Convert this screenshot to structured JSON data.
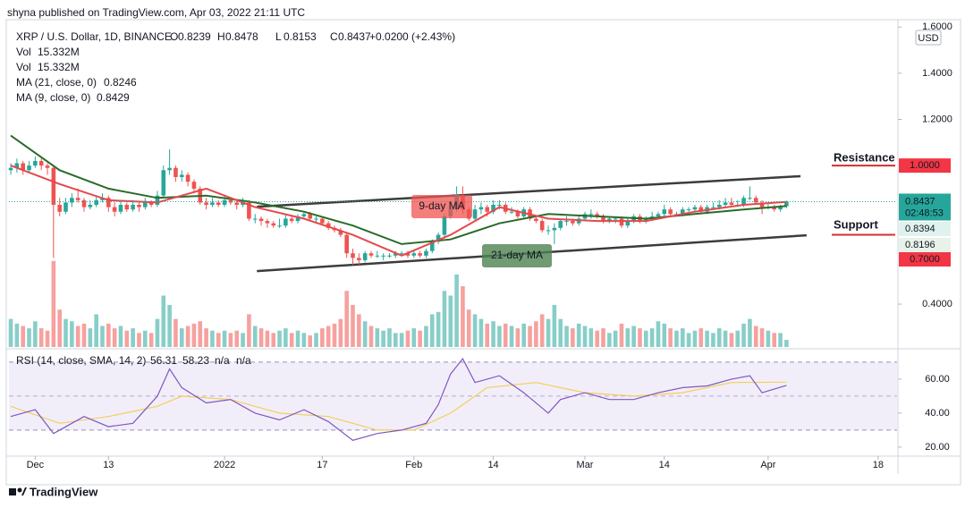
{
  "chart_data": {
    "type": "candlestick",
    "header": "shyna published on TradingView.com, Apr 03, 2022 21:11 UTC",
    "symbol": "XRP / U.S. Dollar, 1D, BINANCE",
    "ohlc_letters": [
      "O",
      "H",
      "L",
      "C"
    ],
    "change": "+0.0200 (+2.43%)",
    "currency": "USD",
    "footer": "TradingView",
    "up_color": "#26a69a",
    "down_color": "#ef5350",
    "xlim": [
      -0.3,
      145.1
    ],
    "xticks": [
      {
        "value": 4,
        "label": "Dec"
      },
      {
        "value": 16,
        "label": "13"
      },
      {
        "value": 35,
        "label": "2022"
      },
      {
        "value": 51,
        "label": "17"
      },
      {
        "value": 66,
        "label": "Feb"
      },
      {
        "value": 79,
        "label": "14"
      },
      {
        "value": 94,
        "label": "Mar"
      },
      {
        "value": 107,
        "label": "14"
      },
      {
        "value": 124,
        "label": "Apr"
      },
      {
        "value": 142,
        "label": "18"
      }
    ],
    "ylim": [
      0.214,
      1.632
    ],
    "yticks": [
      {
        "value": 1.6,
        "label": "1.6000"
      },
      {
        "value": 1.4,
        "label": "1.4000"
      },
      {
        "value": 1.2,
        "label": "1.2000"
      },
      {
        "value": 0.4,
        "label": "0.4000"
      }
    ],
    "candles": [
      [
        0.98,
        1.01,
        0.96,
        0.99
      ],
      [
        0.99,
        1.03,
        0.97,
        1.01
      ],
      [
        1.01,
        1.02,
        0.96,
        0.98
      ],
      [
        0.98,
        1.02,
        0.97,
        1.0
      ],
      [
        1.0,
        1.04,
        0.99,
        1.02
      ],
      [
        1.02,
        1.03,
        0.98,
        1.0
      ],
      [
        1.0,
        1.01,
        0.96,
        0.99
      ],
      [
        0.99,
        1.0,
        0.6,
        0.83
      ],
      [
        0.83,
        0.86,
        0.78,
        0.8
      ],
      [
        0.8,
        0.86,
        0.79,
        0.84
      ],
      [
        0.84,
        0.88,
        0.82,
        0.86
      ],
      [
        0.86,
        0.9,
        0.84,
        0.85
      ],
      [
        0.85,
        0.86,
        0.8,
        0.82
      ],
      [
        0.82,
        0.85,
        0.81,
        0.83
      ],
      [
        0.83,
        0.87,
        0.82,
        0.85
      ],
      [
        0.85,
        0.88,
        0.84,
        0.86
      ],
      [
        0.86,
        0.87,
        0.8,
        0.82
      ],
      [
        0.82,
        0.84,
        0.78,
        0.8
      ],
      [
        0.8,
        0.85,
        0.79,
        0.83
      ],
      [
        0.83,
        0.84,
        0.8,
        0.81
      ],
      [
        0.81,
        0.85,
        0.8,
        0.83
      ],
      [
        0.83,
        0.84,
        0.8,
        0.82
      ],
      [
        0.82,
        0.86,
        0.81,
        0.84
      ],
      [
        0.84,
        0.85,
        0.82,
        0.83
      ],
      [
        0.83,
        0.89,
        0.82,
        0.87
      ],
      [
        0.87,
        1.0,
        0.86,
        0.98
      ],
      [
        0.98,
        1.07,
        0.96,
        0.99
      ],
      [
        0.99,
        1.0,
        0.93,
        0.95
      ],
      [
        0.95,
        0.98,
        0.93,
        0.96
      ],
      [
        0.96,
        0.97,
        0.91,
        0.93
      ],
      [
        0.93,
        0.94,
        0.88,
        0.9
      ],
      [
        0.9,
        0.91,
        0.83,
        0.84
      ],
      [
        0.84,
        0.86,
        0.81,
        0.83
      ],
      [
        0.83,
        0.86,
        0.82,
        0.84
      ],
      [
        0.84,
        0.85,
        0.82,
        0.83
      ],
      [
        0.83,
        0.87,
        0.82,
        0.85
      ],
      [
        0.85,
        0.86,
        0.83,
        0.84
      ],
      [
        0.84,
        0.85,
        0.81,
        0.83
      ],
      [
        0.83,
        0.86,
        0.82,
        0.84
      ],
      [
        0.84,
        0.85,
        0.76,
        0.77
      ],
      [
        0.77,
        0.79,
        0.75,
        0.77
      ],
      [
        0.77,
        0.78,
        0.74,
        0.76
      ],
      [
        0.76,
        0.77,
        0.73,
        0.75
      ],
      [
        0.75,
        0.76,
        0.73,
        0.74
      ],
      [
        0.74,
        0.77,
        0.73,
        0.74
      ],
      [
        0.74,
        0.79,
        0.73,
        0.77
      ],
      [
        0.77,
        0.78,
        0.75,
        0.76
      ],
      [
        0.76,
        0.79,
        0.75,
        0.78
      ],
      [
        0.78,
        0.8,
        0.77,
        0.79
      ],
      [
        0.79,
        0.8,
        0.76,
        0.77
      ],
      [
        0.77,
        0.78,
        0.75,
        0.77
      ],
      [
        0.77,
        0.78,
        0.74,
        0.75
      ],
      [
        0.75,
        0.76,
        0.72,
        0.73
      ],
      [
        0.73,
        0.74,
        0.71,
        0.72
      ],
      [
        0.72,
        0.73,
        0.69,
        0.7
      ],
      [
        0.7,
        0.71,
        0.6,
        0.62
      ],
      [
        0.62,
        0.64,
        0.57,
        0.6
      ],
      [
        0.6,
        0.62,
        0.57,
        0.59
      ],
      [
        0.59,
        0.63,
        0.58,
        0.62
      ],
      [
        0.62,
        0.63,
        0.6,
        0.61
      ],
      [
        0.61,
        0.63,
        0.6,
        0.61
      ],
      [
        0.61,
        0.62,
        0.59,
        0.61
      ],
      [
        0.61,
        0.62,
        0.6,
        0.61
      ],
      [
        0.61,
        0.63,
        0.6,
        0.62
      ],
      [
        0.62,
        0.63,
        0.61,
        0.62
      ],
      [
        0.62,
        0.63,
        0.6,
        0.61
      ],
      [
        0.61,
        0.63,
        0.6,
        0.62
      ],
      [
        0.62,
        0.63,
        0.6,
        0.61
      ],
      [
        0.61,
        0.64,
        0.6,
        0.63
      ],
      [
        0.63,
        0.68,
        0.62,
        0.67
      ],
      [
        0.67,
        0.71,
        0.66,
        0.7
      ],
      [
        0.7,
        0.79,
        0.69,
        0.78
      ],
      [
        0.78,
        0.82,
        0.77,
        0.81
      ],
      [
        0.81,
        0.91,
        0.8,
        0.87
      ],
      [
        0.87,
        0.91,
        0.79,
        0.81
      ],
      [
        0.81,
        0.82,
        0.76,
        0.77
      ],
      [
        0.77,
        0.83,
        0.76,
        0.81
      ],
      [
        0.81,
        0.84,
        0.79,
        0.82
      ],
      [
        0.82,
        0.83,
        0.78,
        0.8
      ],
      [
        0.8,
        0.85,
        0.79,
        0.83
      ],
      [
        0.83,
        0.85,
        0.81,
        0.83
      ],
      [
        0.83,
        0.84,
        0.79,
        0.8
      ],
      [
        0.8,
        0.82,
        0.79,
        0.8
      ],
      [
        0.8,
        0.81,
        0.77,
        0.78
      ],
      [
        0.78,
        0.82,
        0.77,
        0.81
      ],
      [
        0.81,
        0.82,
        0.76,
        0.77
      ],
      [
        0.77,
        0.78,
        0.75,
        0.76
      ],
      [
        0.76,
        0.77,
        0.71,
        0.72
      ],
      [
        0.72,
        0.74,
        0.7,
        0.72
      ],
      [
        0.72,
        0.75,
        0.66,
        0.73
      ],
      [
        0.73,
        0.77,
        0.72,
        0.76
      ],
      [
        0.76,
        0.78,
        0.74,
        0.76
      ],
      [
        0.76,
        0.77,
        0.74,
        0.75
      ],
      [
        0.75,
        0.78,
        0.74,
        0.77
      ],
      [
        0.77,
        0.8,
        0.76,
        0.79
      ],
      [
        0.79,
        0.81,
        0.77,
        0.79
      ],
      [
        0.79,
        0.8,
        0.77,
        0.78
      ],
      [
        0.78,
        0.79,
        0.75,
        0.76
      ],
      [
        0.76,
        0.78,
        0.75,
        0.77
      ],
      [
        0.77,
        0.78,
        0.75,
        0.77
      ],
      [
        0.77,
        0.78,
        0.73,
        0.74
      ],
      [
        0.74,
        0.77,
        0.73,
        0.76
      ],
      [
        0.76,
        0.79,
        0.75,
        0.78
      ],
      [
        0.78,
        0.79,
        0.75,
        0.76
      ],
      [
        0.76,
        0.78,
        0.75,
        0.77
      ],
      [
        0.77,
        0.8,
        0.76,
        0.78
      ],
      [
        0.78,
        0.8,
        0.77,
        0.79
      ],
      [
        0.79,
        0.83,
        0.78,
        0.81
      ],
      [
        0.81,
        0.82,
        0.78,
        0.79
      ],
      [
        0.79,
        0.8,
        0.78,
        0.79
      ],
      [
        0.79,
        0.82,
        0.78,
        0.81
      ],
      [
        0.81,
        0.82,
        0.8,
        0.81
      ],
      [
        0.81,
        0.83,
        0.8,
        0.82
      ],
      [
        0.82,
        0.83,
        0.79,
        0.8
      ],
      [
        0.8,
        0.83,
        0.79,
        0.82
      ],
      [
        0.82,
        0.84,
        0.81,
        0.82
      ],
      [
        0.82,
        0.85,
        0.81,
        0.83
      ],
      [
        0.83,
        0.86,
        0.82,
        0.84
      ],
      [
        0.84,
        0.86,
        0.82,
        0.83
      ],
      [
        0.83,
        0.85,
        0.82,
        0.83
      ],
      [
        0.83,
        0.87,
        0.82,
        0.86
      ],
      [
        0.86,
        0.91,
        0.85,
        0.86
      ],
      [
        0.86,
        0.87,
        0.83,
        0.84
      ],
      [
        0.84,
        0.85,
        0.79,
        0.82
      ],
      [
        0.82,
        0.84,
        0.81,
        0.82
      ],
      [
        0.82,
        0.83,
        0.8,
        0.81
      ],
      [
        0.81,
        0.83,
        0.8,
        0.82
      ],
      [
        0.8239,
        0.8478,
        0.8153,
        0.8437
      ]
    ],
    "volume_name": "Vol",
    "volume_value_label": "15.332M",
    "vlim": [
      0,
      700
    ],
    "volume": [
      60,
      50,
      45,
      40,
      55,
      40,
      35,
      184,
      80,
      60,
      55,
      45,
      50,
      40,
      70,
      45,
      50,
      40,
      45,
      35,
      40,
      30,
      35,
      30,
      60,
      110,
      90,
      60,
      40,
      45,
      50,
      55,
      40,
      35,
      30,
      35,
      30,
      35,
      30,
      70,
      45,
      40,
      35,
      30,
      35,
      40,
      30,
      35,
      30,
      25,
      30,
      40,
      45,
      50,
      60,
      120,
      90,
      70,
      55,
      45,
      40,
      35,
      40,
      30,
      30,
      35,
      40,
      35,
      45,
      70,
      75,
      120,
      110,
      155,
      130,
      80,
      70,
      60,
      50,
      55,
      45,
      50,
      45,
      40,
      50,
      45,
      55,
      70,
      60,
      90,
      60,
      45,
      40,
      50,
      45,
      40,
      35,
      40,
      30,
      35,
      50,
      40,
      45,
      40,
      35,
      40,
      55,
      50,
      40,
      35,
      40,
      30,
      35,
      40,
      35,
      30,
      40,
      35,
      30,
      35,
      50,
      60,
      45,
      40,
      35,
      30,
      30,
      15.332
    ],
    "ma_lines": [
      {
        "name": "MA (21, close, 0)",
        "color": "#2a6b2a",
        "x": [
          0,
          8,
          16,
          24,
          32,
          40,
          48,
          56,
          64,
          72,
          80,
          88,
          96,
          104,
          112,
          120,
          127
        ],
        "values": [
          1.13,
          0.98,
          0.9,
          0.86,
          0.87,
          0.84,
          0.8,
          0.74,
          0.66,
          0.68,
          0.75,
          0.79,
          0.78,
          0.77,
          0.79,
          0.81,
          0.8246
        ]
      },
      {
        "name": "MA (9, close, 0)",
        "color": "#e5484d",
        "x": [
          0,
          8,
          16,
          24,
          32,
          40,
          48,
          56,
          64,
          72,
          80,
          88,
          96,
          104,
          112,
          120,
          127
        ],
        "values": [
          1.0,
          0.92,
          0.85,
          0.84,
          0.9,
          0.82,
          0.77,
          0.7,
          0.61,
          0.7,
          0.82,
          0.77,
          0.76,
          0.76,
          0.8,
          0.83,
          0.8429
        ]
      }
    ],
    "trendlines": [
      {
        "x": [
          40.3,
          129.3
        ],
        "y": [
          0.822,
          0.954
        ]
      },
      {
        "x": [
          40.3,
          130.3
        ],
        "y": [
          0.543,
          0.698
        ]
      }
    ],
    "levels": [
      {
        "name": "Resistance",
        "value": 1.0,
        "label": "1.0000"
      },
      {
        "name": "Support",
        "value": 0.7,
        "label": "0.7000"
      }
    ],
    "annotations": [
      "9-day MA",
      "21-day MA"
    ],
    "last_price_timer": "02:48:53",
    "extra_price_labels": [
      "0.8394",
      "0.8196"
    ],
    "rsi": {
      "name": "RSI (14, close, SMA, 14, 2)",
      "color": "#7e57c2",
      "sma_color": "#f2cf5b",
      "x": [
        0,
        4,
        7,
        12,
        16,
        20,
        24,
        26,
        28,
        32,
        36,
        40,
        44,
        48,
        52,
        56,
        60,
        64,
        68,
        70,
        72,
        74,
        76,
        80,
        84,
        88,
        90,
        94,
        98,
        102,
        106,
        110,
        114,
        118,
        121,
        123,
        127
      ],
      "values": [
        38,
        42,
        28,
        38,
        32,
        34,
        50,
        66,
        55,
        46,
        48,
        40,
        36,
        42,
        35,
        24,
        28,
        30,
        34,
        45,
        63,
        72,
        58,
        62,
        52,
        40,
        48,
        52,
        48,
        48,
        52,
        55,
        56,
        60,
        62,
        52,
        56.31
      ],
      "sma_x": [
        0,
        8,
        16,
        24,
        28,
        36,
        44,
        52,
        60,
        66,
        72,
        78,
        86,
        94,
        102,
        110,
        118,
        127
      ],
      "sma_values": [
        44,
        34,
        38,
        44,
        50,
        48,
        40,
        38,
        30,
        30,
        40,
        55,
        58,
        52,
        50,
        52,
        58,
        58.23
      ],
      "na_labels": [
        "n/a",
        "n/a"
      ],
      "ylim": [
        14.7,
        76.8
      ],
      "yticks": [
        {
          "value": 60,
          "label": "60.00"
        },
        {
          "value": 40,
          "label": "40.00"
        },
        {
          "value": 20,
          "label": "20.00"
        }
      ],
      "band": [
        30,
        70
      ]
    }
  }
}
